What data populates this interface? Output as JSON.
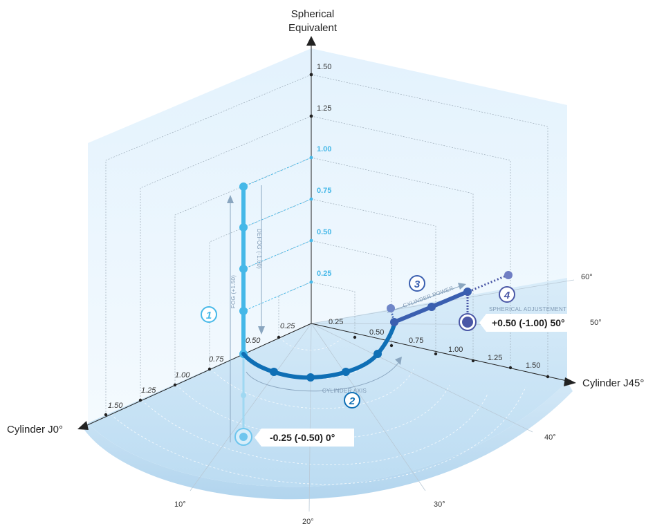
{
  "axes": {
    "vertical_title_line1": "Spherical",
    "vertical_title_line2": "Equivalent",
    "left_title": "Cylinder J0°",
    "right_title": "Cylinder J45°"
  },
  "vertical_ticks_gray": [
    "1.50",
    "1.25"
  ],
  "vertical_ticks_blue": [
    "1.00",
    "0.75",
    "0.50",
    "0.25"
  ],
  "left_ticks": [
    "0.25",
    "0.50",
    "0.75",
    "1.00",
    "1.25",
    "1.50"
  ],
  "right_ticks": [
    "0.25",
    "0.50",
    "0.75",
    "1.00",
    "1.25",
    "1.50"
  ],
  "degree_labels": [
    "10°",
    "20°",
    "30°",
    "40°",
    "50°",
    "60°"
  ],
  "steps": {
    "step1": {
      "number": "1",
      "up_label": "FOG (+1.50)",
      "down_label": "DEFOG (-1.00)"
    },
    "step2": {
      "number": "2",
      "label": "CYLINDER AXIS"
    },
    "step3": {
      "number": "3",
      "label": "CYLINDER POWER"
    },
    "step4": {
      "number": "4",
      "label": "SPHERICAL ADJUSTEMENT"
    }
  },
  "callouts": {
    "start": "-0.25 (-0.50) 0°",
    "end": "+0.50 (-1.00) 50°"
  },
  "colors": {
    "step1": "#45b8e8",
    "step2": "#0f6fb5",
    "step3": "#3a5fb0",
    "step4": "#4a57a6"
  }
}
